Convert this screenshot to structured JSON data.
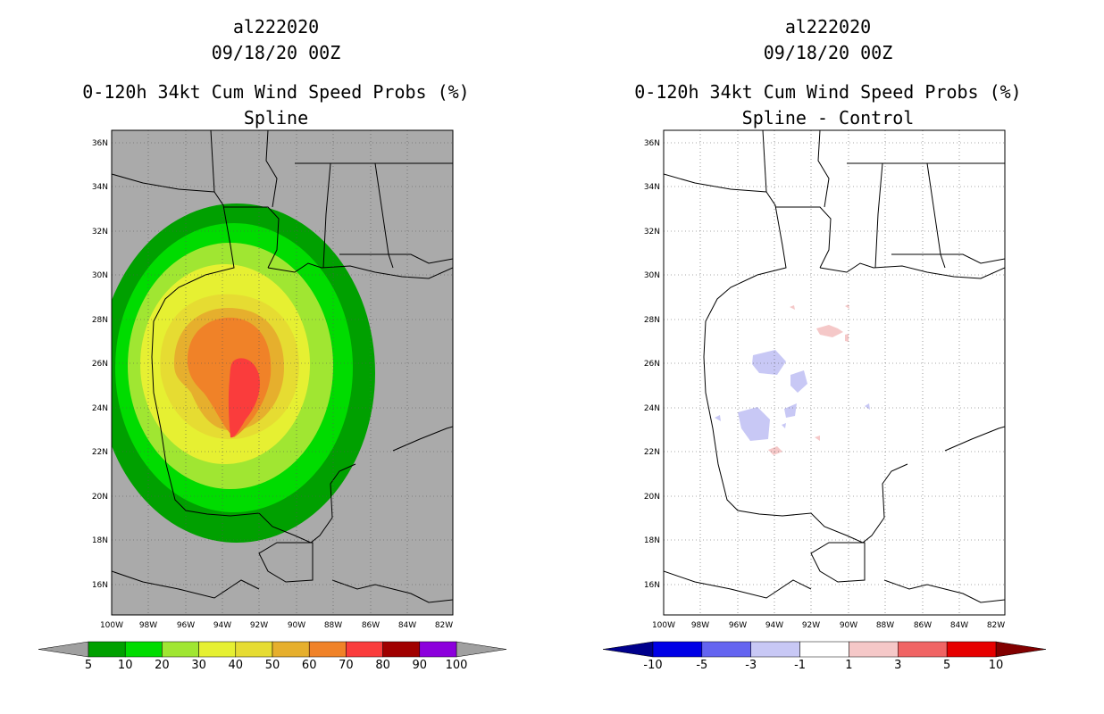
{
  "left_panel": {
    "storm_id": "al222020",
    "datetime": "09/18/20 00Z",
    "product": "0-120h 34kt Cum Wind Speed Probs (%)",
    "subtitle": "Spline",
    "land_color": "#aaaaaa",
    "colorbar": {
      "labels": [
        "5",
        "10",
        "20",
        "30",
        "40",
        "50",
        "60",
        "70",
        "80",
        "90",
        "100"
      ],
      "colors": [
        "#00a000",
        "#00dc00",
        "#a0e632",
        "#e6f032",
        "#e6dc32",
        "#e6af2d",
        "#f08228",
        "#fa3c3c",
        "#a00000",
        "#8c00dc"
      ],
      "low_arrow": "#a0a0a0",
      "high_arrow": "#a0a0a0"
    }
  },
  "right_panel": {
    "storm_id": "al222020",
    "datetime": "09/18/20 00Z",
    "product": "0-120h 34kt Cum Wind Speed Probs (%)",
    "subtitle": "Spline - Control",
    "colorbar": {
      "labels": [
        "-10",
        "-5",
        "-3",
        "-1",
        "1",
        "3",
        "5",
        "10"
      ],
      "colors": [
        "#0000e6",
        "#6464f0",
        "#c8c8f5",
        "#ffffff",
        "#f5c8c8",
        "#f06464",
        "#e60000"
      ],
      "low_arrow": "#00008c",
      "high_arrow": "#820000"
    }
  },
  "axes": {
    "lat_labels": [
      "16N",
      "18N",
      "20N",
      "22N",
      "24N",
      "26N",
      "28N",
      "30N",
      "32N",
      "34N",
      "36N"
    ],
    "lon_labels": [
      "100W",
      "98W",
      "96W",
      "94W",
      "92W",
      "90W",
      "88W",
      "86W",
      "84W",
      "82W"
    ]
  }
}
